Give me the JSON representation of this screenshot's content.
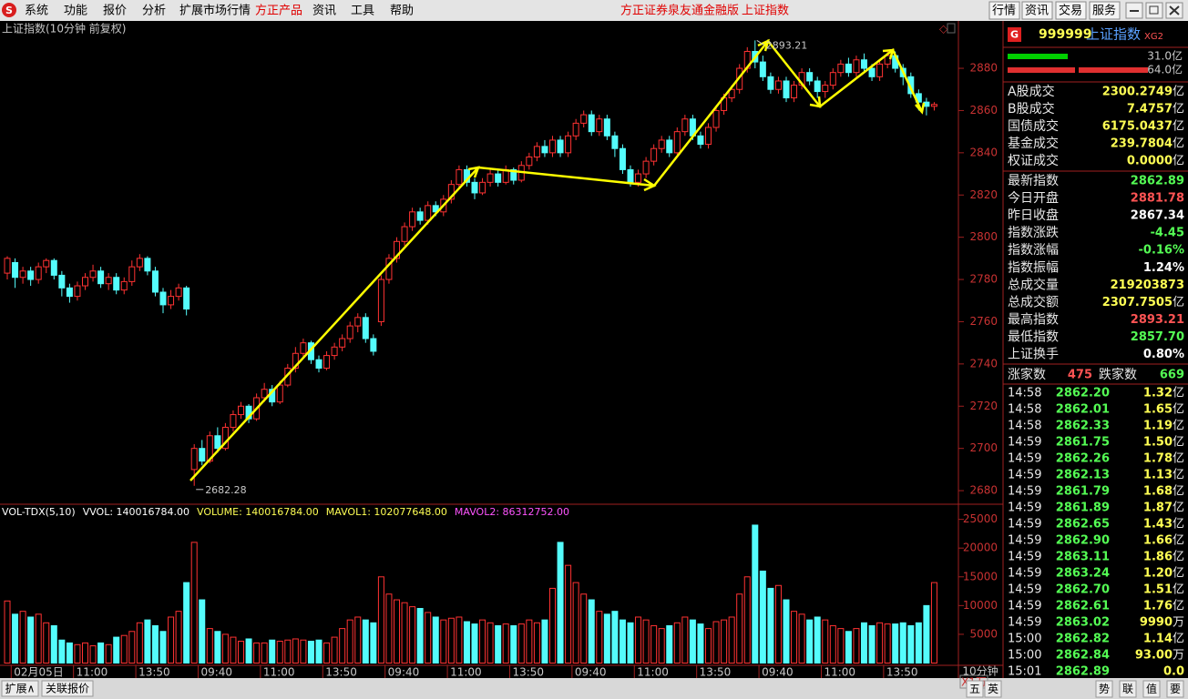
{
  "menu": [
    "系统",
    "功能",
    "报价",
    "分析",
    "扩展市场行情",
    "方正产品",
    "资讯",
    "工具",
    "帮助"
  ],
  "header_center": [
    "方正证券泉友通金融版",
    "上证指数"
  ],
  "buttons": [
    "行情",
    "资讯",
    "交易",
    "服务"
  ],
  "chart_data": {
    "type": "candlestick",
    "title": "上证指数(10分钟 前复权)",
    "up_color": "#ff3232",
    "down_color": "#54fcfc",
    "ylim": [
      2674,
      2902
    ],
    "yticks": [
      2680,
      2700,
      2720,
      2740,
      2760,
      2780,
      2800,
      2820,
      2840,
      2860,
      2880
    ],
    "y2lim": [
      0,
      27000
    ],
    "y2ticks": [
      5000,
      10000,
      15000,
      20000,
      25000
    ],
    "y2_unit": "X1万",
    "period": "10分钟",
    "high_label": "2893.21",
    "low_label": "2682.28",
    "indicator_legend": [
      {
        "text": "VOL-TDX(5,10)",
        "color": "#ffffff"
      },
      {
        "text": "VVOL: 140016784.00",
        "color": "#ffffff"
      },
      {
        "text": "VOLUME: 140016784.00",
        "color": "#ffff54"
      },
      {
        "text": "MAVOL1: 102077648.00",
        "color": "#ffff54"
      },
      {
        "text": "MAVOL2: 86312752.00",
        "color": "#ff54ff"
      }
    ],
    "x": [
      null,
      "02月05日",
      null,
      null,
      null,
      null,
      null,
      null,
      null,
      "11:00",
      null,
      null,
      null,
      null,
      null,
      null,
      null,
      "13:50",
      null,
      null,
      null,
      null,
      null,
      null,
      null,
      "09:40",
      null,
      null,
      null,
      null,
      null,
      null,
      null,
      "11:00",
      null,
      null,
      null,
      null,
      null,
      null,
      null,
      "13:50",
      null,
      null,
      null,
      null,
      null,
      null,
      null,
      "09:40",
      null,
      null,
      null,
      null,
      null,
      null,
      null,
      "11:00",
      null,
      null,
      null,
      null,
      null,
      null,
      null,
      "13:50",
      null,
      null,
      null,
      null,
      null,
      null,
      null,
      "09:40",
      null,
      null,
      null,
      null,
      null,
      null,
      null,
      "11:00",
      null,
      null,
      null,
      null,
      null,
      null,
      null,
      "13:50",
      null,
      null,
      null,
      null,
      null,
      null,
      null,
      "09:40",
      null,
      null,
      null,
      null,
      null,
      null,
      null,
      "11:00",
      null,
      null,
      null,
      null,
      null,
      null,
      null,
      "13:50",
      null,
      null,
      null,
      null,
      null,
      null
    ],
    "candles": [
      [
        2783,
        2790,
        2791,
        2780
      ],
      [
        2788,
        2781,
        2790,
        2776
      ],
      [
        2781,
        2784,
        2786,
        2778
      ],
      [
        2784,
        2780,
        2786,
        2777
      ],
      [
        2780,
        2786,
        2788,
        2778
      ],
      [
        2786,
        2789,
        2790,
        2783
      ],
      [
        2789,
        2782,
        2790,
        2780
      ],
      [
        2782,
        2776,
        2784,
        2772
      ],
      [
        2776,
        2772,
        2778,
        2769
      ],
      [
        2772,
        2777,
        2779,
        2770
      ],
      [
        2777,
        2781,
        2783,
        2775
      ],
      [
        2781,
        2784,
        2787,
        2779
      ],
      [
        2784,
        2778,
        2786,
        2776
      ],
      [
        2778,
        2781,
        2783,
        2775
      ],
      [
        2781,
        2775,
        2783,
        2773
      ],
      [
        2775,
        2779,
        2781,
        2773
      ],
      [
        2779,
        2786,
        2789,
        2777
      ],
      [
        2786,
        2790,
        2792,
        2784
      ],
      [
        2790,
        2784,
        2791,
        2782
      ],
      [
        2784,
        2774,
        2786,
        2772
      ],
      [
        2774,
        2768,
        2776,
        2764
      ],
      [
        2768,
        2772,
        2775,
        2766
      ],
      [
        2772,
        2776,
        2778,
        2770
      ],
      [
        2776,
        2766,
        2777,
        2763
      ],
      [
        2690,
        2700,
        2702,
        2682.28
      ],
      [
        2700,
        2694,
        2704,
        2692
      ],
      [
        2694,
        2706,
        2708,
        2693
      ],
      [
        2706,
        2700,
        2710,
        2698
      ],
      [
        2700,
        2710,
        2712,
        2699
      ],
      [
        2710,
        2716,
        2718,
        2708
      ],
      [
        2716,
        2720,
        2722,
        2714
      ],
      [
        2720,
        2714,
        2721,
        2712
      ],
      [
        2714,
        2724,
        2726,
        2713
      ],
      [
        2724,
        2728,
        2731,
        2722
      ],
      [
        2728,
        2722,
        2730,
        2720
      ],
      [
        2722,
        2730,
        2732,
        2721
      ],
      [
        2730,
        2738,
        2740,
        2729
      ],
      [
        2738,
        2745,
        2748,
        2736
      ],
      [
        2745,
        2750,
        2752,
        2743
      ],
      [
        2750,
        2742,
        2751,
        2740
      ],
      [
        2742,
        2738,
        2744,
        2736
      ],
      [
        2738,
        2744,
        2746,
        2737
      ],
      [
        2744,
        2748,
        2750,
        2742
      ],
      [
        2748,
        2752,
        2754,
        2746
      ],
      [
        2752,
        2758,
        2760,
        2750
      ],
      [
        2758,
        2762,
        2764,
        2755
      ],
      [
        2762,
        2752,
        2764,
        2750
      ],
      [
        2752,
        2746,
        2754,
        2744
      ],
      [
        2760,
        2780,
        2782,
        2758
      ],
      [
        2780,
        2790,
        2792,
        2778
      ],
      [
        2790,
        2798,
        2800,
        2788
      ],
      [
        2798,
        2805,
        2807,
        2796
      ],
      [
        2805,
        2812,
        2814,
        2803
      ],
      [
        2812,
        2808,
        2814,
        2806
      ],
      [
        2808,
        2815,
        2817,
        2806
      ],
      [
        2815,
        2812,
        2817,
        2810
      ],
      [
        2812,
        2818,
        2820,
        2810
      ],
      [
        2818,
        2825,
        2827,
        2816
      ],
      [
        2825,
        2832,
        2834,
        2823
      ],
      [
        2832,
        2826,
        2834,
        2824
      ],
      [
        2826,
        2821,
        2828,
        2818
      ],
      [
        2821,
        2826,
        2828,
        2820
      ],
      [
        2826,
        2830,
        2832,
        2824
      ],
      [
        2830,
        2826,
        2832,
        2824
      ],
      [
        2826,
        2832,
        2834,
        2825
      ],
      [
        2832,
        2827,
        2833,
        2825
      ],
      [
        2827,
        2834,
        2836,
        2826
      ],
      [
        2834,
        2838,
        2840,
        2832
      ],
      [
        2838,
        2843,
        2845,
        2836
      ],
      [
        2843,
        2840,
        2846,
        2838
      ],
      [
        2840,
        2846,
        2848,
        2838
      ],
      [
        2846,
        2840,
        2848,
        2838
      ],
      [
        2840,
        2848,
        2850,
        2838
      ],
      [
        2848,
        2854,
        2856,
        2846
      ],
      [
        2854,
        2858,
        2860,
        2852
      ],
      [
        2858,
        2850,
        2860,
        2848
      ],
      [
        2850,
        2856,
        2858,
        2848
      ],
      [
        2856,
        2848,
        2858,
        2846
      ],
      [
        2848,
        2842,
        2850,
        2838
      ],
      [
        2842,
        2832,
        2844,
        2830
      ],
      [
        2832,
        2826,
        2834,
        2824
      ],
      [
        2826,
        2830,
        2832,
        2824
      ],
      [
        2830,
        2836,
        2838,
        2828
      ],
      [
        2836,
        2842,
        2844,
        2834
      ],
      [
        2842,
        2846,
        2848,
        2840
      ],
      [
        2846,
        2840,
        2848,
        2838
      ],
      [
        2840,
        2850,
        2852,
        2839
      ],
      [
        2850,
        2856,
        2858,
        2848
      ],
      [
        2856,
        2848,
        2858,
        2846
      ],
      [
        2848,
        2844,
        2850,
        2842
      ],
      [
        2844,
        2852,
        2854,
        2842
      ],
      [
        2852,
        2860,
        2862,
        2850
      ],
      [
        2860,
        2866,
        2868,
        2858
      ],
      [
        2866,
        2870,
        2872,
        2864
      ],
      [
        2870,
        2880,
        2882,
        2868
      ],
      [
        2880,
        2888,
        2890,
        2878
      ],
      [
        2888,
        2883,
        2893.21,
        2880
      ],
      [
        2883,
        2876,
        2886,
        2874
      ],
      [
        2876,
        2870,
        2878,
        2868
      ],
      [
        2870,
        2874,
        2876,
        2868
      ],
      [
        2874,
        2866,
        2876,
        2864
      ],
      [
        2866,
        2872,
        2874,
        2864
      ],
      [
        2872,
        2878,
        2880,
        2870
      ],
      [
        2878,
        2874,
        2880,
        2872
      ],
      [
        2874,
        2869,
        2876,
        2866
      ],
      [
        2869,
        2872,
        2874,
        2866
      ],
      [
        2872,
        2878,
        2880,
        2870
      ],
      [
        2878,
        2882,
        2884,
        2876
      ],
      [
        2882,
        2878,
        2885,
        2876
      ],
      [
        2878,
        2884,
        2886,
        2876
      ],
      [
        2884,
        2880,
        2887,
        2878
      ],
      [
        2880,
        2876,
        2882,
        2874
      ],
      [
        2876,
        2882,
        2884,
        2874
      ],
      [
        2882,
        2886,
        2888,
        2880
      ],
      [
        2886,
        2880,
        2888,
        2878
      ],
      [
        2880,
        2876,
        2882,
        2872
      ],
      [
        2876,
        2868,
        2878,
        2866
      ],
      [
        2868,
        2864,
        2870,
        2860
      ],
      [
        2864,
        2862,
        2866,
        2857.7
      ],
      [
        2862,
        2862.89,
        2864,
        2860
      ]
    ],
    "volume": [
      10800,
      8500,
      9000,
      8000,
      8500,
      7000,
      6500,
      4000,
      3500,
      3200,
      3500,
      3000,
      3500,
      3200,
      4500,
      4800,
      5500,
      7000,
      7500,
      6500,
      5500,
      8000,
      9000,
      14000,
      21000,
      11000,
      6000,
      5500,
      5000,
      4500,
      3800,
      4200,
      3500,
      3500,
      4000,
      3800,
      4000,
      4200,
      4000,
      3800,
      4000,
      3500,
      4500,
      6000,
      7500,
      8000,
      7500,
      7000,
      15000,
      12000,
      11000,
      10500,
      9800,
      9500,
      8800,
      8000,
      7500,
      7800,
      8000,
      7200,
      6800,
      7500,
      7000,
      6500,
      6800,
      6500,
      6800,
      7500,
      7000,
      7500,
      13000,
      21000,
      17000,
      14000,
      12000,
      11000,
      9000,
      8500,
      9000,
      7500,
      7000,
      8000,
      7500,
      6500,
      6000,
      6500,
      7000,
      8000,
      7500,
      6800,
      6000,
      7200,
      7500,
      8000,
      12000,
      15000,
      24000,
      16000,
      13000,
      13500,
      11000,
      9000,
      8500,
      7500,
      8000,
      7500,
      6500,
      6000,
      5500,
      6000,
      7000,
      6500,
      7000,
      6800,
      6800,
      7000,
      6500,
      7000,
      10000,
      14000
    ]
  },
  "quote": {
    "badge": "G",
    "code": "999999",
    "name": "上证指数",
    "tag": "XG2",
    "bars": [
      {
        "text": "31.0亿",
        "color": "#00d000"
      },
      {
        "text": "64.0亿",
        "color": "#e03030"
      }
    ],
    "volume_rows": [
      {
        "label": "A股成交",
        "value": "2300.2749",
        "unit": "亿",
        "color": "#ffff54"
      },
      {
        "label": "B股成交",
        "value": "7.4757",
        "unit": "亿",
        "color": "#ffff54"
      },
      {
        "label": "国债成交",
        "value": "6175.0437",
        "unit": "亿",
        "color": "#ffff54"
      },
      {
        "label": "基金成交",
        "value": "239.7804",
        "unit": "亿",
        "color": "#ffff54"
      },
      {
        "label": "权证成交",
        "value": "0.0000",
        "unit": "亿",
        "color": "#ffff54"
      }
    ],
    "index_rows": [
      {
        "label": "最新指数",
        "value": "2862.89",
        "color": "#54fc54"
      },
      {
        "label": "今日开盘",
        "value": "2881.78",
        "color": "#ff5454"
      },
      {
        "label": "昨日收盘",
        "value": "2867.34",
        "color": "#ffffff"
      },
      {
        "label": "指数涨跌",
        "value": "-4.45",
        "color": "#54fc54"
      },
      {
        "label": "指数涨幅",
        "value": "-0.16%",
        "color": "#54fc54"
      },
      {
        "label": "指数振幅",
        "value": "1.24%",
        "color": "#ffffff"
      },
      {
        "label": "总成交量",
        "value": "219203873",
        "color": "#ffff54"
      },
      {
        "label": "总成交额",
        "value": "2307.7505",
        "unit": "亿",
        "color": "#ffff54"
      },
      {
        "label": "最高指数",
        "value": "2893.21",
        "color": "#ff5454"
      },
      {
        "label": "最低指数",
        "value": "2857.70",
        "color": "#54fc54"
      },
      {
        "label": "上证换手",
        "value": "0.80%",
        "color": "#ffffff"
      }
    ],
    "breadth": {
      "up_label": "涨家数",
      "up": "475",
      "down_label": "跌家数",
      "down": "669"
    },
    "trades": [
      {
        "time": "14:58",
        "price": "2862.20",
        "amount": "1.32",
        "unit": "亿"
      },
      {
        "time": "14:58",
        "price": "2862.01",
        "amount": "1.65",
        "unit": "亿"
      },
      {
        "time": "14:58",
        "price": "2862.33",
        "amount": "1.19",
        "unit": "亿"
      },
      {
        "time": "14:59",
        "price": "2861.75",
        "amount": "1.50",
        "unit": "亿"
      },
      {
        "time": "14:59",
        "price": "2862.26",
        "amount": "1.78",
        "unit": "亿"
      },
      {
        "time": "14:59",
        "price": "2862.13",
        "amount": "1.13",
        "unit": "亿"
      },
      {
        "time": "14:59",
        "price": "2861.79",
        "amount": "1.68",
        "unit": "亿"
      },
      {
        "time": "14:59",
        "price": "2861.89",
        "amount": "1.87",
        "unit": "亿"
      },
      {
        "time": "14:59",
        "price": "2862.65",
        "amount": "1.43",
        "unit": "亿"
      },
      {
        "time": "14:59",
        "price": "2862.90",
        "amount": "1.66",
        "unit": "亿"
      },
      {
        "time": "14:59",
        "price": "2863.11",
        "amount": "1.86",
        "unit": "亿"
      },
      {
        "time": "14:59",
        "price": "2863.24",
        "amount": "1.20",
        "unit": "亿"
      },
      {
        "time": "14:59",
        "price": "2862.70",
        "amount": "1.51",
        "unit": "亿"
      },
      {
        "time": "14:59",
        "price": "2862.61",
        "amount": "1.76",
        "unit": "亿"
      },
      {
        "time": "14:59",
        "price": "2863.02",
        "amount": "9990",
        "unit": "万"
      },
      {
        "time": "15:00",
        "price": "2862.82",
        "amount": "1.14",
        "unit": "亿"
      },
      {
        "time": "15:00",
        "price": "2862.84",
        "amount": "93.00",
        "unit": "万"
      },
      {
        "time": "15:01",
        "price": "2862.89",
        "amount": "0.0"
      }
    ]
  },
  "bottom_tabs": [
    "扩展∧",
    "关联报价"
  ],
  "bottom_icons": [
    "五",
    "英",
    "势",
    "联",
    "值",
    "要"
  ]
}
